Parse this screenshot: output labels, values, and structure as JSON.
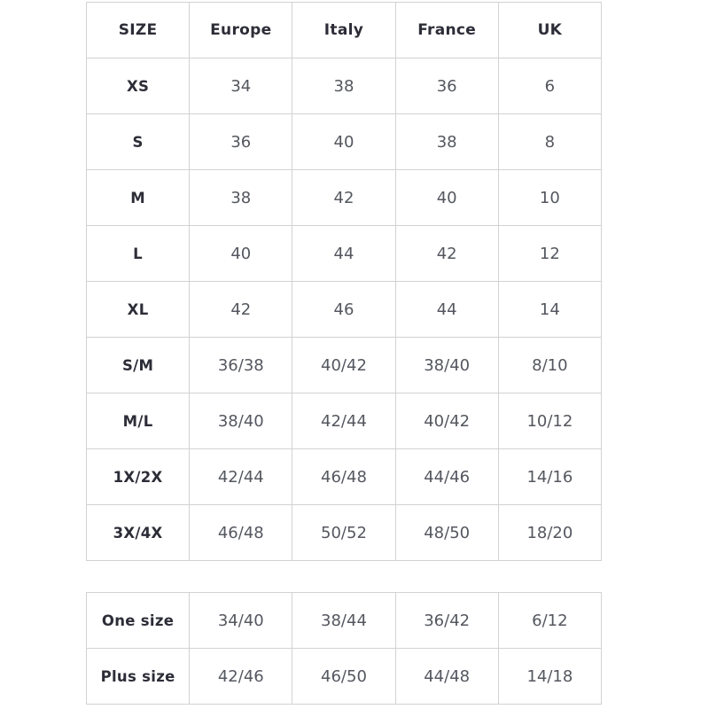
{
  "colors": {
    "header_text": "#2d2d38",
    "cell_text": "#54575f",
    "border": "#d2d2d2",
    "background": "#ffffff"
  },
  "main_table": {
    "headers": [
      "SIZE",
      "Europe",
      "Italy",
      "France",
      "UK"
    ],
    "rows": [
      {
        "label": "XS",
        "values": [
          "34",
          "38",
          "36",
          "6"
        ]
      },
      {
        "label": "S",
        "values": [
          "36",
          "40",
          "38",
          "8"
        ]
      },
      {
        "label": "M",
        "values": [
          "38",
          "42",
          "40",
          "10"
        ]
      },
      {
        "label": "L",
        "values": [
          "40",
          "44",
          "42",
          "12"
        ]
      },
      {
        "label": "XL",
        "values": [
          "42",
          "46",
          "44",
          "14"
        ]
      },
      {
        "label": "S/M",
        "values": [
          "36/38",
          "40/42",
          "38/40",
          "8/10"
        ]
      },
      {
        "label": "M/L",
        "values": [
          "38/40",
          "42/44",
          "40/42",
          "10/12"
        ]
      },
      {
        "label": "1X/2X",
        "values": [
          "42/44",
          "46/48",
          "44/46",
          "14/16"
        ]
      },
      {
        "label": "3X/4X",
        "values": [
          "46/48",
          "50/52",
          "48/50",
          "18/20"
        ]
      }
    ]
  },
  "extra_table": {
    "rows": [
      {
        "label": "One size",
        "values": [
          "34/40",
          "38/44",
          "36/42",
          "6/12"
        ]
      },
      {
        "label": "Plus size",
        "values": [
          "42/46",
          "46/50",
          "44/48",
          "14/18"
        ]
      }
    ]
  }
}
